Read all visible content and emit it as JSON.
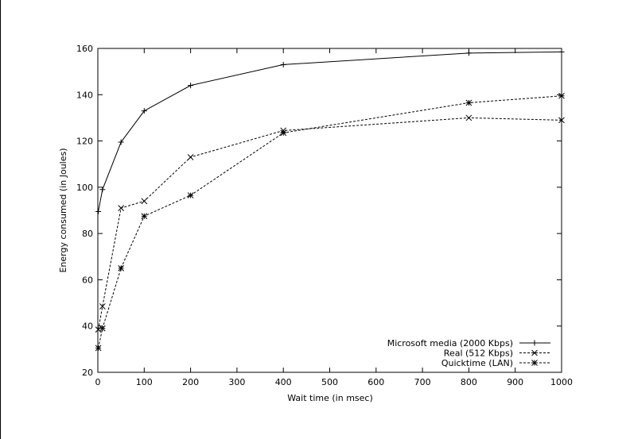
{
  "chart_data": {
    "type": "line",
    "title": "",
    "xlabel": "Wait time (in msec)",
    "ylabel": "Energy consumed (in Joules)",
    "xlim": [
      0,
      1000
    ],
    "ylim": [
      20,
      160
    ],
    "xticks": [
      0,
      100,
      200,
      300,
      400,
      500,
      600,
      700,
      800,
      900,
      1000
    ],
    "yticks": [
      20,
      40,
      60,
      80,
      100,
      120,
      140,
      160
    ],
    "grid": false,
    "legend_position": "bottom-right",
    "series": [
      {
        "name": "Microsoft media (2000 Kbps)",
        "marker": "plus",
        "dash": "solid",
        "x": [
          1,
          10,
          50,
          100,
          200,
          400,
          800,
          1000
        ],
        "y": [
          89.5,
          99,
          119.5,
          133,
          144,
          153,
          158,
          158.5
        ]
      },
      {
        "name": "Real (512 Kbps)",
        "marker": "cross",
        "dash": "dashed",
        "x": [
          1,
          10,
          50,
          100,
          200,
          400,
          800,
          1000
        ],
        "y": [
          38.5,
          48.5,
          91,
          94,
          113,
          124.5,
          130,
          129
        ]
      },
      {
        "name": "Quicktime (LAN)",
        "marker": "star",
        "dash": "dashed",
        "x": [
          1,
          10,
          50,
          100,
          200,
          400,
          800,
          1000
        ],
        "y": [
          30.5,
          39,
          65,
          87.5,
          96.5,
          123.5,
          136.5,
          139.5
        ]
      }
    ]
  }
}
